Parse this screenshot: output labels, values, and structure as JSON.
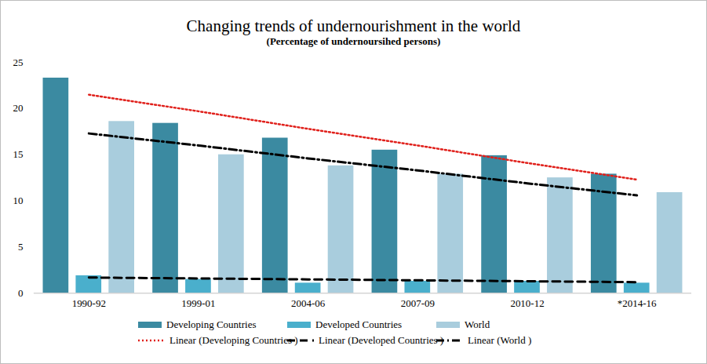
{
  "chart_data": {
    "type": "bar",
    "title": "Changing trends of undernourishment in the world",
    "subtitle": "(Percentage of undernoursihed persons)",
    "categories": [
      "1990-92",
      "1999-01",
      "2004-06",
      "2007-09",
      "2010-12",
      "*2014-16"
    ],
    "series": [
      {
        "name": "Developing Countries",
        "type": "bar",
        "color": "#3b8aa1",
        "values": [
          23.3,
          18.4,
          16.8,
          15.5,
          14.9,
          12.9
        ]
      },
      {
        "name": "Developed Countries",
        "type": "bar",
        "color": "#4aafcc",
        "values": [
          1.9,
          1.5,
          1.1,
          1.3,
          1.3,
          1.1
        ]
      },
      {
        "name": "World",
        "type": "bar",
        "color": "#a9cddd",
        "values": [
          18.6,
          15.0,
          13.8,
          12.9,
          12.5,
          10.9
        ]
      },
      {
        "name": "Linear (Developing Countries )",
        "type": "line",
        "line_style": "dotted",
        "color": "#e0201b",
        "values": [
          21.5,
          19.7,
          17.8,
          16.0,
          14.1,
          12.3
        ]
      },
      {
        "name": "Linear (Developed Countries )",
        "type": "line",
        "line_style": "dashed",
        "color": "#000000",
        "values": [
          1.7,
          1.6,
          1.5,
          1.4,
          1.3,
          1.2
        ]
      },
      {
        "name": "Linear (World )",
        "type": "line",
        "line_style": "dashdot",
        "color": "#000000",
        "values": [
          17.3,
          16.0,
          14.6,
          13.3,
          11.9,
          10.6
        ]
      }
    ],
    "ylim": [
      0,
      25
    ],
    "yticks": [
      0,
      5,
      10,
      15,
      20,
      25
    ],
    "grid": false,
    "legend": "bottom"
  }
}
